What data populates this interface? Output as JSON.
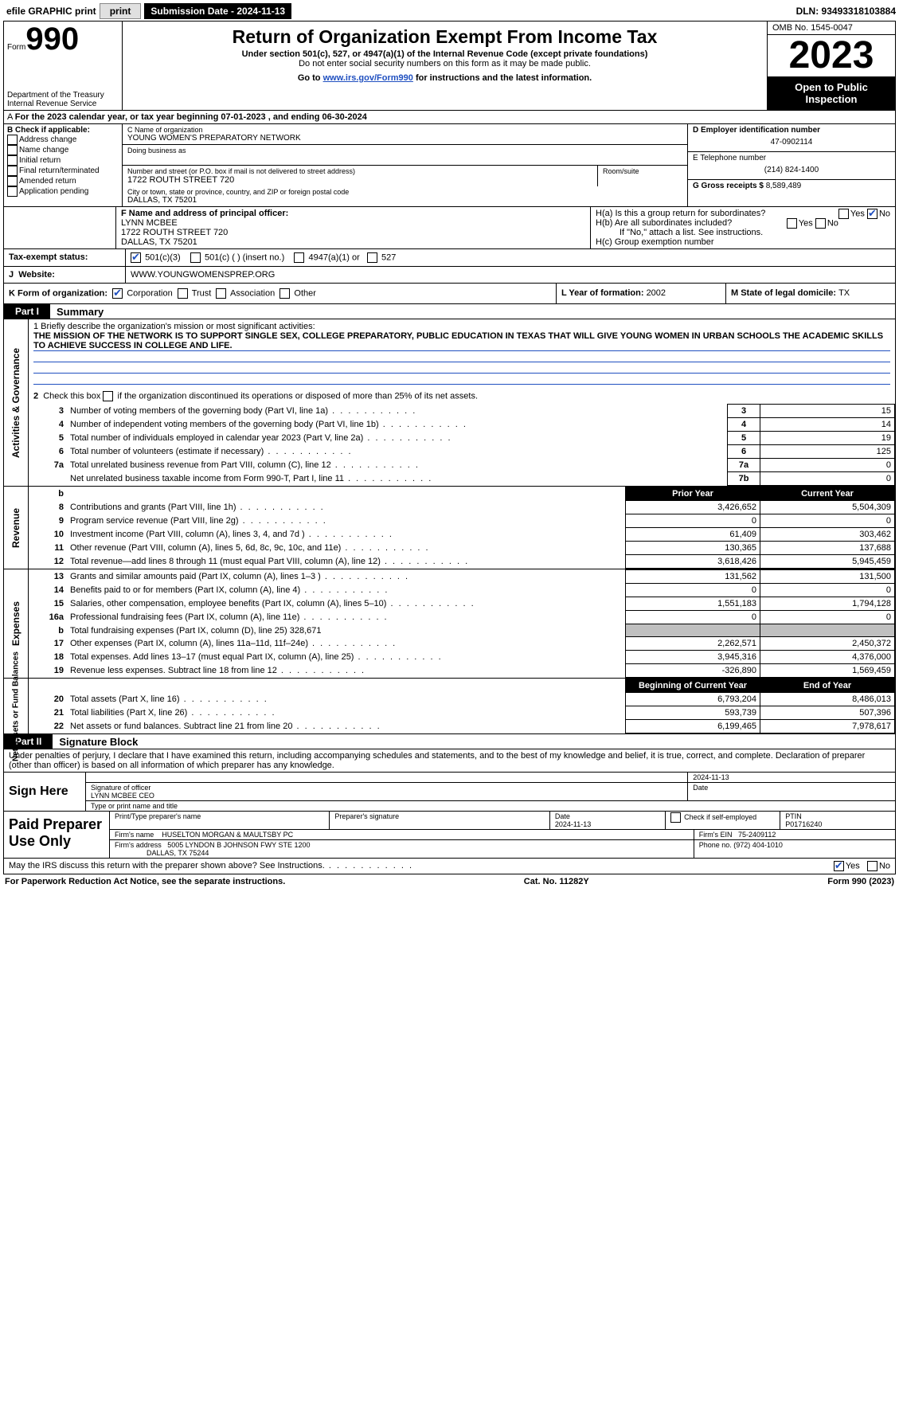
{
  "topbar": {
    "efile": "efile GRAPHIC print",
    "submission": "Submission Date - 2024-11-13",
    "dln": "DLN: 93493318103884"
  },
  "header": {
    "form_word": "Form",
    "form_num": "990",
    "dept": "Department of the Treasury Internal Revenue Service",
    "title": "Return of Organization Exempt From Income Tax",
    "sub1": "Under section 501(c), 527, or 4947(a)(1) of the Internal Revenue Code (except private foundations)",
    "sub2": "Do not enter social security numbers on this form as it may be made public.",
    "goto_pre": "Go to ",
    "goto_link": "www.irs.gov/Form990",
    "goto_post": " for instructions and the latest information.",
    "omb": "OMB No. 1545-0047",
    "year": "2023",
    "otp": "Open to Public Inspection"
  },
  "cal": "For the 2023 calendar year, or tax year beginning 07-01-2023   , and ending 06-30-2024",
  "boxB": {
    "head": "B Check if applicable:",
    "items": [
      "Address change",
      "Name change",
      "Initial return",
      "Final return/terminated",
      "Amended return",
      "Application pending"
    ]
  },
  "boxC": {
    "name_lbl": "C Name of organization",
    "name": "YOUNG WOMEN'S PREPARATORY NETWORK",
    "dba_lbl": "Doing business as",
    "addr_lbl": "Number and street (or P.O. box if mail is not delivered to street address)",
    "room_lbl": "Room/suite",
    "addr": "1722 ROUTH STREET 720",
    "city_lbl": "City or town, state or province, country, and ZIP or foreign postal code",
    "city": "DALLAS, TX  75201"
  },
  "boxD": {
    "d_lbl": "D Employer identification number",
    "ein": "47-0902114",
    "e_lbl": "E Telephone number",
    "phone": "(214) 824-1400",
    "g_lbl": "G Gross receipts $ ",
    "g_val": "8,589,489"
  },
  "boxF": {
    "lbl": "F  Name and address of principal officer:",
    "name": "LYNN MCBEE",
    "addr": "1722 ROUTH STREET 720",
    "city": "DALLAS, TX  75201"
  },
  "boxH": {
    "a": "H(a)  Is this a group return for subordinates?",
    "b": "H(b)  Are all subordinates included?",
    "note": "If \"No,\" attach a list. See instructions.",
    "c": "H(c)  Group exemption number"
  },
  "rowI": {
    "label": "Tax-exempt status:",
    "opt1": "501(c)(3)",
    "opt2": "501(c) (  ) (insert no.)",
    "opt3": "4947(a)(1) or",
    "opt4": "527"
  },
  "rowJ": {
    "label": "Website:",
    "val": "WWW.YOUNGWOMENSPREP.ORG"
  },
  "rowK": {
    "label": "K Form of organization:",
    "o1": "Corporation",
    "o2": "Trust",
    "o3": "Association",
    "o4": "Other",
    "l_lbl": "L Year of formation: ",
    "l_val": "2002",
    "m_lbl": "M State of legal domicile: ",
    "m_val": "TX"
  },
  "part1": {
    "tag": "Part I",
    "title": "Summary"
  },
  "mission": {
    "q1": "1  Briefly describe the organization's mission or most significant activities:",
    "text": "THE MISSION OF THE NETWORK IS TO SUPPORT SINGLE SEX, COLLEGE PREPARATORY, PUBLIC EDUCATION IN TEXAS THAT WILL GIVE YOUNG WOMEN IN URBAN SCHOOLS THE ACADEMIC SKILLS TO ACHIEVE SUCCESS IN COLLEGE AND LIFE.",
    "q2": "2  Check this box      if the organization discontinued its operations or disposed of more than 25% of its net assets."
  },
  "gov_rows": [
    {
      "n": "3",
      "label": "Number of voting members of the governing body (Part VI, line 1a)",
      "id": "3",
      "val": "15"
    },
    {
      "n": "4",
      "label": "Number of independent voting members of the governing body (Part VI, line 1b)",
      "id": "4",
      "val": "14"
    },
    {
      "n": "5",
      "label": "Total number of individuals employed in calendar year 2023 (Part V, line 2a)",
      "id": "5",
      "val": "19"
    },
    {
      "n": "6",
      "label": "Total number of volunteers (estimate if necessary)",
      "id": "6",
      "val": "125"
    },
    {
      "n": "7a",
      "label": "Total unrelated business revenue from Part VIII, column (C), line 12",
      "id": "7a",
      "val": "0"
    },
    {
      "n": "",
      "label": "Net unrelated business taxable income from Form 990-T, Part I, line 11",
      "id": "7b",
      "val": "0"
    }
  ],
  "rev_head": {
    "b": "b",
    "prior": "Prior Year",
    "curr": "Current Year"
  },
  "rev_rows": [
    {
      "n": "8",
      "label": "Contributions and grants (Part VIII, line 1h)",
      "prior": "3,426,652",
      "curr": "5,504,309"
    },
    {
      "n": "9",
      "label": "Program service revenue (Part VIII, line 2g)",
      "prior": "0",
      "curr": "0"
    },
    {
      "n": "10",
      "label": "Investment income (Part VIII, column (A), lines 3, 4, and 7d )",
      "prior": "61,409",
      "curr": "303,462"
    },
    {
      "n": "11",
      "label": "Other revenue (Part VIII, column (A), lines 5, 6d, 8c, 9c, 10c, and 11e)",
      "prior": "130,365",
      "curr": "137,688"
    },
    {
      "n": "12",
      "label": "Total revenue—add lines 8 through 11 (must equal Part VIII, column (A), line 12)",
      "prior": "3,618,426",
      "curr": "5,945,459"
    }
  ],
  "exp_rows": [
    {
      "n": "13",
      "label": "Grants and similar amounts paid (Part IX, column (A), lines 1–3 )",
      "prior": "131,562",
      "curr": "131,500"
    },
    {
      "n": "14",
      "label": "Benefits paid to or for members (Part IX, column (A), line 4)",
      "prior": "0",
      "curr": "0"
    },
    {
      "n": "15",
      "label": "Salaries, other compensation, employee benefits (Part IX, column (A), lines 5–10)",
      "prior": "1,551,183",
      "curr": "1,794,128"
    },
    {
      "n": "16a",
      "label": "Professional fundraising fees (Part IX, column (A), line 11e)",
      "prior": "0",
      "curr": "0"
    },
    {
      "n": "b",
      "label": "Total fundraising expenses (Part IX, column (D), line 25) 328,671",
      "prior": "",
      "curr": "",
      "shade": true
    },
    {
      "n": "17",
      "label": "Other expenses (Part IX, column (A), lines 11a–11d, 11f–24e)",
      "prior": "2,262,571",
      "curr": "2,450,372"
    },
    {
      "n": "18",
      "label": "Total expenses. Add lines 13–17 (must equal Part IX, column (A), line 25)",
      "prior": "3,945,316",
      "curr": "4,376,000"
    },
    {
      "n": "19",
      "label": "Revenue less expenses. Subtract line 18 from line 12",
      "prior": "-326,890",
      "curr": "1,569,459"
    }
  ],
  "net_head": {
    "prior": "Beginning of Current Year",
    "curr": "End of Year"
  },
  "net_rows": [
    {
      "n": "20",
      "label": "Total assets (Part X, line 16)",
      "prior": "6,793,204",
      "curr": "8,486,013"
    },
    {
      "n": "21",
      "label": "Total liabilities (Part X, line 26)",
      "prior": "593,739",
      "curr": "507,396"
    },
    {
      "n": "22",
      "label": "Net assets or fund balances. Subtract line 21 from line 20",
      "prior": "6,199,465",
      "curr": "7,978,617"
    }
  ],
  "tabs": {
    "gov": "Activities & Governance",
    "rev": "Revenue",
    "exp": "Expenses",
    "net": "Net Assets or Fund Balances"
  },
  "part2": {
    "tag": "Part II",
    "title": "Signature Block"
  },
  "sig": {
    "declare": "Under penalties of perjury, I declare that I have examined this return, including accompanying schedules and statements, and to the best of my knowledge and belief, it is true, correct, and complete. Declaration of preparer (other than officer) is based on all information of which preparer has any knowledge.",
    "sign_here": "Sign Here",
    "sig_officer": "Signature of officer",
    "date_top": "2024-11-13",
    "date_lbl": "Date",
    "officer_name": "LYNN MCBEE CEO",
    "type_name": "Type or print name and title",
    "paid": "Paid Preparer Use Only",
    "prep_name_lbl": "Print/Type preparer's name",
    "prep_sig_lbl": "Preparer's signature",
    "prep_date": "2024-11-13",
    "check_self": "Check       if self-employed",
    "ptin_lbl": "PTIN",
    "ptin": "P01716240",
    "firm_name_lbl": "Firm's name",
    "firm_name": "HUSELTON MORGAN & MAULTSBY PC",
    "firm_ein_lbl": "Firm's EIN",
    "firm_ein": "75-2409112",
    "firm_addr_lbl": "Firm's address",
    "firm_addr": "5005 LYNDON B JOHNSON FWY STE 1200",
    "firm_city": "DALLAS, TX  75244",
    "phone_lbl": "Phone no. ",
    "phone": "(972) 404-1010",
    "discuss": "May the IRS discuss this return with the preparer shown above? See Instructions."
  },
  "footer": {
    "left": "For Paperwork Reduction Act Notice, see the separate instructions.",
    "mid": "Cat. No. 11282Y",
    "right": "Form 990 (2023)"
  },
  "yesno": {
    "yes": "Yes",
    "no": "No"
  }
}
